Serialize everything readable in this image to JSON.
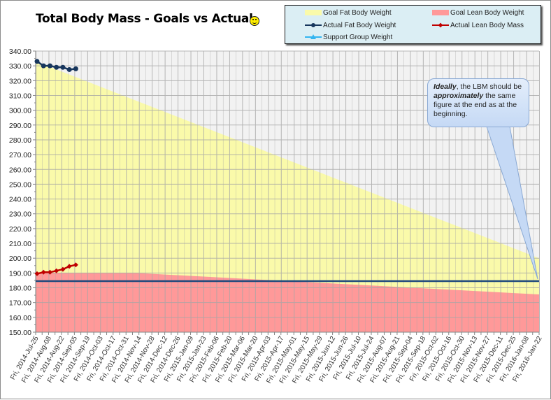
{
  "chart_data": {
    "type": "area",
    "title": "Total Body Mass - Goals vs Actual",
    "title_icon": "smiley-icon",
    "xlabel": "",
    "ylabel": "",
    "ylim": [
      150,
      340
    ],
    "y_ticks": [
      "340.00",
      "330.00",
      "320.00",
      "310.00",
      "300.00",
      "290.00",
      "280.00",
      "270.00",
      "260.00",
      "250.00",
      "240.00",
      "230.00",
      "220.00",
      "210.00",
      "200.00",
      "190.00",
      "180.00",
      "170.00",
      "160.00",
      "150.00"
    ],
    "grid": true,
    "legend_position": "top-right",
    "categories": [
      "Fri, 2014-Jul-25",
      "Fri, 2014-Aug-08",
      "Fri, 2014-Aug-22",
      "Fri, 2014-Sep-05",
      "Fri, 2014-Sep-19",
      "Fri, 2014-Oct-03",
      "Fri, 2014-Oct-17",
      "Fri, 2014-Oct-31",
      "Fri, 2014-Nov-14",
      "Fri, 2014-Nov-28",
      "Fri, 2014-Dec-12",
      "Fri, 2014-Dec-26",
      "Fri, 2015-Jan-09",
      "Fri, 2015-Jan-23",
      "Fri, 2015-Feb-06",
      "Fri, 2015-Feb-20",
      "Fri, 2015-Mar-06",
      "Fri, 2015-Mar-20",
      "Fri, 2015-Apr-03",
      "Fri, 2015-Apr-17",
      "Fri, 2015-May-01",
      "Fri, 2015-May-15",
      "Fri, 2015-May-29",
      "Fri, 2015-Jun-12",
      "Fri, 2015-Jun-26",
      "Fri, 2015-Jul-10",
      "Fri, 2015-Jul-24",
      "Fri, 2015-Aug-07",
      "Fri, 2015-Aug-21",
      "Fri, 2015-Sep-04",
      "Fri, 2015-Sep-18",
      "Fri, 2015-Oct-02",
      "Fri, 2015-Oct-16",
      "Fri, 2015-Oct-30",
      "Fri, 2015-Nov-13",
      "Fri, 2015-Nov-27",
      "Fri, 2015-Dec-11",
      "Fri, 2015-Dec-25",
      "Fri, 2016-Jan-08",
      "Fri, 2016-Jan-22"
    ],
    "series": [
      {
        "name": "Goal Fat Body Weight",
        "type": "area",
        "color": "#fafaaa",
        "start": 333,
        "end": 200
      },
      {
        "name": "Goal Lean Body Weight",
        "type": "area",
        "color": "#ff9999",
        "start": 190,
        "end": 175.5
      },
      {
        "name": "Actual Fat Body Weight",
        "type": "line",
        "color": "#17365d",
        "marker": "circle",
        "values": [
          333,
          330,
          330,
          329,
          329,
          327.5,
          328
        ]
      },
      {
        "name": "Actual Lean Body Mass",
        "type": "line",
        "color": "#c00000",
        "marker": "diamond",
        "values": [
          189.5,
          190.5,
          190.5,
          191.5,
          192.5,
          194.5,
          195.5
        ]
      },
      {
        "name": "Support Group Weight",
        "type": "line",
        "color": "#1f497d",
        "marker": "triangle",
        "values_flat": 184.5
      }
    ],
    "annotations": [
      {
        "text_parts": [
          {
            "t": "Ideally",
            "b": true,
            "i": true
          },
          {
            "t": ", the LBM should be ",
            "b": false,
            "i": false
          },
          {
            "t": "approximately",
            "b": true,
            "i": true
          },
          {
            "t": "  the same figure at the end as at the beginning.",
            "b": false,
            "i": false
          }
        ],
        "points_to": "Fri, 2016-Jan-22"
      }
    ]
  },
  "legend": {
    "items": [
      {
        "label": "Goal Fat Body Weight",
        "kind": "area",
        "color": "#fafaaa"
      },
      {
        "label": "Goal Lean Body Weight",
        "kind": "area",
        "color": "#ff9999"
      },
      {
        "label": "Actual Fat Body Weight",
        "kind": "line",
        "color": "#17365d"
      },
      {
        "label": "Actual Lean Body Mass",
        "kind": "line",
        "color": "#c00000"
      },
      {
        "label": "Support Group Weight",
        "kind": "line",
        "color": "#33b5f0"
      }
    ]
  },
  "colors": {
    "plot_bg": "#f2f2f2",
    "grid": "#a6a6a6",
    "goal_fat": "#fafaaa",
    "goal_lean": "#ff9999",
    "actual_fat": "#17365d",
    "actual_lean": "#c00000",
    "support": "#1f497d",
    "callout_border": "#8aa9d4"
  }
}
